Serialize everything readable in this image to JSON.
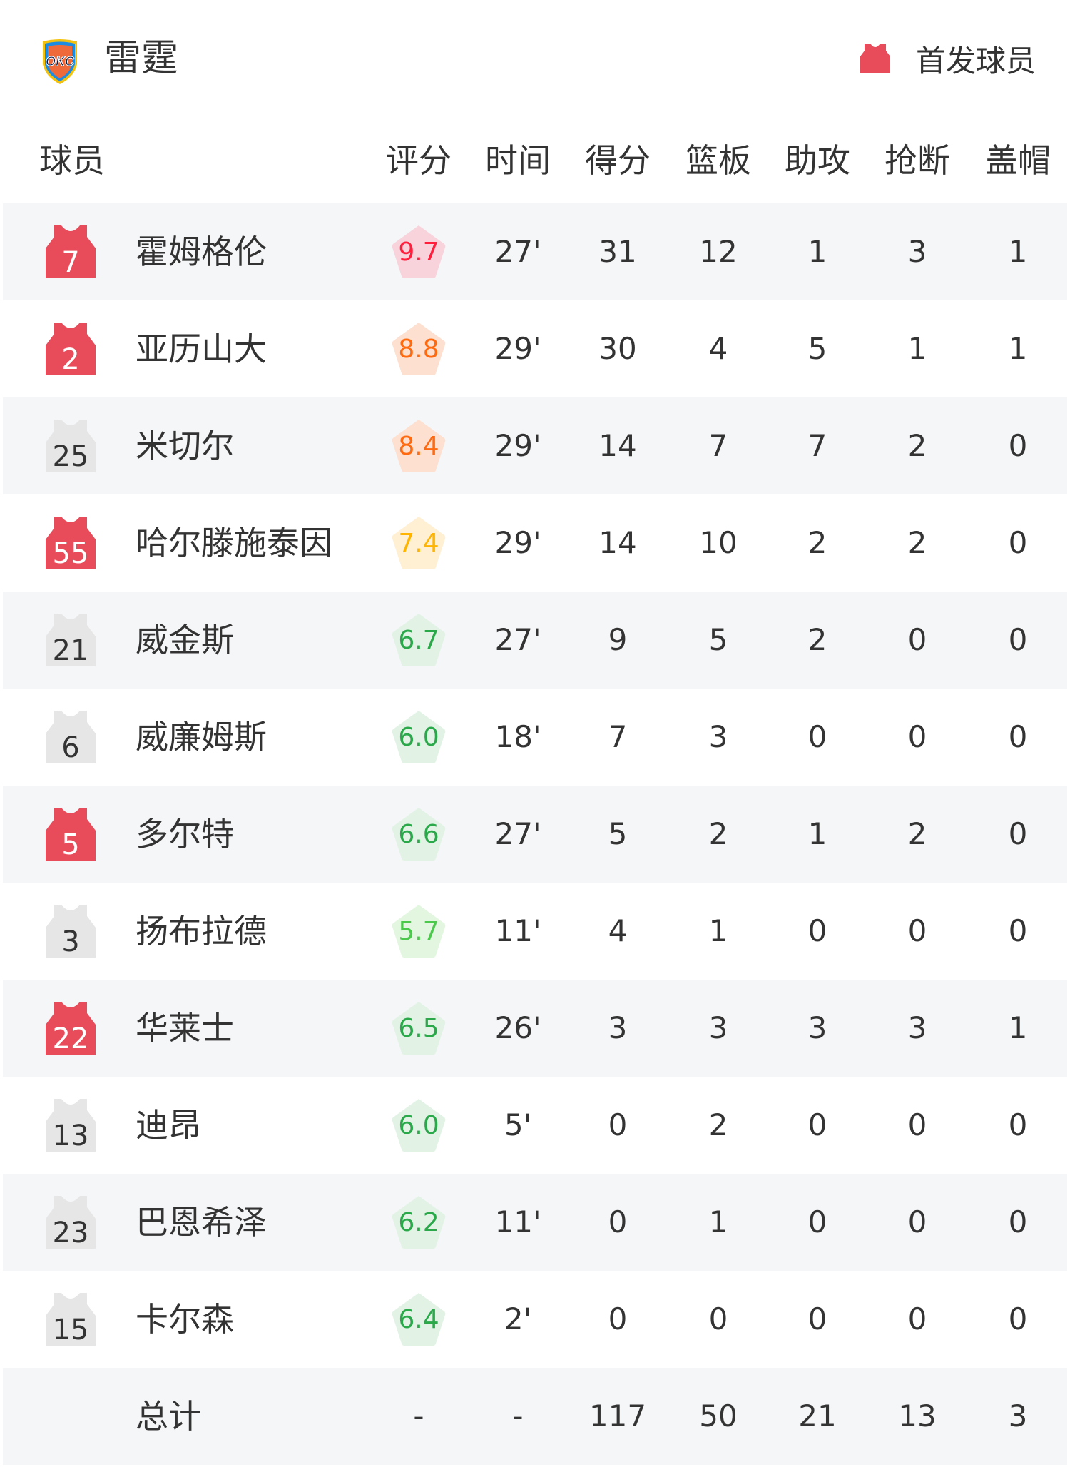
{
  "team": {
    "name": "雷霆",
    "logo_text": "OKC"
  },
  "legend": {
    "label": "首发球员",
    "icon": "jersey-icon",
    "color": "#e84c5a"
  },
  "columns": [
    "球员",
    "评分",
    "时间",
    "得分",
    "篮板",
    "助攻",
    "抢断",
    "盖帽"
  ],
  "colors": {
    "starter_jersey": "#e84c5a",
    "bench_jersey": "#e6e6e6",
    "rating_pink": {
      "bg": "#f8d3dc",
      "text": "#ff1f3d"
    },
    "rating_orange": {
      "bg": "#fde0cf",
      "text": "#ff6a10"
    },
    "rating_yellow": {
      "bg": "#fff0d3",
      "text": "#ffb400"
    },
    "rating_green": {
      "bg": "#e2f3e6",
      "text": "#2aa84a"
    },
    "rating_lightgreen": {
      "bg": "#e3f7e0",
      "text": "#4cc94c"
    }
  },
  "players": [
    {
      "number": "7",
      "name": "霍姆格伦",
      "starter": true,
      "rating": "9.7",
      "rating_tier": "rating_pink",
      "time": "27'",
      "pts": "31",
      "reb": "12",
      "ast": "1",
      "stl": "3",
      "blk": "1"
    },
    {
      "number": "2",
      "name": "亚历山大",
      "starter": true,
      "rating": "8.8",
      "rating_tier": "rating_orange",
      "time": "29'",
      "pts": "30",
      "reb": "4",
      "ast": "5",
      "stl": "1",
      "blk": "1"
    },
    {
      "number": "25",
      "name": "米切尔",
      "starter": false,
      "rating": "8.4",
      "rating_tier": "rating_orange",
      "time": "29'",
      "pts": "14",
      "reb": "7",
      "ast": "7",
      "stl": "2",
      "blk": "0"
    },
    {
      "number": "55",
      "name": "哈尔滕施泰因",
      "starter": true,
      "rating": "7.4",
      "rating_tier": "rating_yellow",
      "time": "29'",
      "pts": "14",
      "reb": "10",
      "ast": "2",
      "stl": "2",
      "blk": "0"
    },
    {
      "number": "21",
      "name": "威金斯",
      "starter": false,
      "rating": "6.7",
      "rating_tier": "rating_green",
      "time": "27'",
      "pts": "9",
      "reb": "5",
      "ast": "2",
      "stl": "0",
      "blk": "0"
    },
    {
      "number": "6",
      "name": "威廉姆斯",
      "starter": false,
      "rating": "6.0",
      "rating_tier": "rating_green",
      "time": "18'",
      "pts": "7",
      "reb": "3",
      "ast": "0",
      "stl": "0",
      "blk": "0"
    },
    {
      "number": "5",
      "name": "多尔特",
      "starter": true,
      "rating": "6.6",
      "rating_tier": "rating_green",
      "time": "27'",
      "pts": "5",
      "reb": "2",
      "ast": "1",
      "stl": "2",
      "blk": "0"
    },
    {
      "number": "3",
      "name": "扬布拉德",
      "starter": false,
      "rating": "5.7",
      "rating_tier": "rating_lightgreen",
      "time": "11'",
      "pts": "4",
      "reb": "1",
      "ast": "0",
      "stl": "0",
      "blk": "0"
    },
    {
      "number": "22",
      "name": "华莱士",
      "starter": true,
      "rating": "6.5",
      "rating_tier": "rating_green",
      "time": "26'",
      "pts": "3",
      "reb": "3",
      "ast": "3",
      "stl": "3",
      "blk": "1"
    },
    {
      "number": "13",
      "name": "迪昂",
      "starter": false,
      "rating": "6.0",
      "rating_tier": "rating_green",
      "time": "5'",
      "pts": "0",
      "reb": "2",
      "ast": "0",
      "stl": "0",
      "blk": "0"
    },
    {
      "number": "23",
      "name": "巴恩希泽",
      "starter": false,
      "rating": "6.2",
      "rating_tier": "rating_green",
      "time": "11'",
      "pts": "0",
      "reb": "1",
      "ast": "0",
      "stl": "0",
      "blk": "0"
    },
    {
      "number": "15",
      "name": "卡尔森",
      "starter": false,
      "rating": "6.4",
      "rating_tier": "rating_green",
      "time": "2'",
      "pts": "0",
      "reb": "0",
      "ast": "0",
      "stl": "0",
      "blk": "0"
    }
  ],
  "totals": {
    "label": "总计",
    "rating": "-",
    "time": "-",
    "pts": "117",
    "reb": "50",
    "ast": "21",
    "stl": "13",
    "blk": "3"
  }
}
